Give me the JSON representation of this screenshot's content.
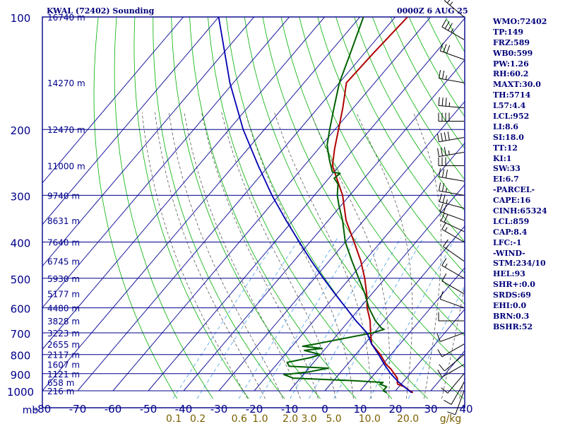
{
  "header": {
    "station": "KWAL (72402) Sounding",
    "time": "0000Z  6 AUG 25"
  },
  "colors": {
    "frame": "#00008b",
    "isotherm": "#1a1aa0",
    "dry_adiabat": "#00b000",
    "moist_adiabat": "#444444",
    "mixing_ratio": "#4aa0e8",
    "temperature": "#b00000",
    "dewpoint": "#006000",
    "parcel": "#0000b0",
    "wind_barb": "#000000",
    "index_text": "#00007a"
  },
  "indices": [
    "WMO:72402",
    "TP:149",
    "FRZ:589",
    "WB0:599",
    "PW:1.26",
    "RH:60.2",
    "MAXT:30.0",
    "TH:5714",
    "L57:4.4",
    "LCL:952",
    "LI:8.6",
    "SI:18.0",
    "TT:12",
    "KI:1",
    "SW:33",
    "EI:6.7",
    "-PARCEL-",
    "CAPE:16",
    "CINH:65324",
    "LCL:859",
    "CAP:8.4",
    "LFC:-1",
    "-WIND-",
    "STM:234/10",
    "HEL:93",
    "SHR+:0.0",
    "SRDS:69",
    "EHI:0.0",
    "BRN:0.3",
    "BSHR:52"
  ],
  "chart_data": {
    "type": "line",
    "subtype": "skew-t log-p sounding",
    "xlabel": "",
    "ylabel": "mb",
    "pressure_range": [
      1000,
      100
    ],
    "temperature_range": [
      -80,
      40
    ],
    "pressure_ticks": [
      100,
      200,
      300,
      400,
      500,
      600,
      700,
      800,
      900,
      1000
    ],
    "temperature_ticks": [
      -80,
      -70,
      -60,
      -50,
      -40,
      -30,
      -20,
      -10,
      0,
      10,
      20,
      30,
      40
    ],
    "temperature_tick_labels": [
      "-80",
      "-70",
      "-60",
      "-50",
      "-40",
      "-30",
      "-20",
      "-10",
      "0",
      "10",
      "20",
      "30",
      "40"
    ],
    "pressure_unit": "mb",
    "mixing_ratio_labels": [
      {
        "g_kg": 0.1,
        "label": "0.1"
      },
      {
        "g_kg": 0.2,
        "label": "0.2"
      },
      {
        "g_kg": 0.6,
        "label": "0.6"
      },
      {
        "g_kg": 1.0,
        "label": "1.0"
      },
      {
        "g_kg": 2.0,
        "label": "2.0"
      },
      {
        "g_kg": 3.0,
        "label": "3.0"
      },
      {
        "g_kg": 5.0,
        "label": "5.0"
      },
      {
        "g_kg": 10.0,
        "label": "10.0"
      },
      {
        "g_kg": 20.0,
        "label": "20.0"
      }
    ],
    "mixing_ratio_unit": "g/kg",
    "height_labels": [
      {
        "p": 1000,
        "label": "216 m"
      },
      {
        "p": 950,
        "label": "658 m"
      },
      {
        "p": 900,
        "label": "1121 m"
      },
      {
        "p": 850,
        "label": "1607 m"
      },
      {
        "p": 800,
        "label": "2117 m"
      },
      {
        "p": 750,
        "label": "2655 m"
      },
      {
        "p": 700,
        "label": "3223 m"
      },
      {
        "p": 650,
        "label": "3828 m"
      },
      {
        "p": 600,
        "label": "4480 m"
      },
      {
        "p": 550,
        "label": "5177 m"
      },
      {
        "p": 500,
        "label": "5930 m"
      },
      {
        "p": 450,
        "label": "6745 m"
      },
      {
        "p": 400,
        "label": "7640 m"
      },
      {
        "p": 350,
        "label": "8631 m"
      },
      {
        "p": 300,
        "label": "9740 m"
      },
      {
        "p": 250,
        "label": "11000 m"
      },
      {
        "p": 200,
        "label": "12470 m"
      },
      {
        "p": 150,
        "label": "14270 m"
      },
      {
        "p": 100,
        "label": "16740 m"
      }
    ],
    "series": [
      {
        "name": "Temperature",
        "points": [
          [
            1012,
            25.4
          ],
          [
            1000,
            24.0
          ],
          [
            975,
            21.5
          ],
          [
            960,
            19.0
          ],
          [
            950,
            18.5
          ],
          [
            925,
            17.5
          ],
          [
            900,
            15.5
          ],
          [
            875,
            13.5
          ],
          [
            850,
            11.0
          ],
          [
            800,
            7.0
          ],
          [
            750,
            2.0
          ],
          [
            700,
            -1.0
          ],
          [
            650,
            -4.0
          ],
          [
            600,
            -8.0
          ],
          [
            550,
            -11.5
          ],
          [
            500,
            -15.8
          ],
          [
            450,
            -21.0
          ],
          [
            400,
            -27.5
          ],
          [
            350,
            -35.0
          ],
          [
            300,
            -42.0
          ],
          [
            250,
            -52.0
          ],
          [
            225,
            -55.5
          ],
          [
            200,
            -59.0
          ],
          [
            175,
            -63.0
          ],
          [
            150,
            -68.0
          ],
          [
            125,
            -67.5
          ],
          [
            100,
            -66.5
          ]
        ]
      },
      {
        "name": "Dewpoint",
        "points": [
          [
            1012,
            18.0
          ],
          [
            1000,
            16.5
          ],
          [
            975,
            16.5
          ],
          [
            960,
            14.0
          ],
          [
            950,
            14.5
          ],
          [
            940,
            6.0
          ],
          [
            925,
            -12.0
          ],
          [
            905,
            -15.5
          ],
          [
            890,
            -9.0
          ],
          [
            870,
            -4.5
          ],
          [
            860,
            -16.0
          ],
          [
            840,
            -17.5
          ],
          [
            815,
            -12.0
          ],
          [
            800,
            -10.0
          ],
          [
            780,
            -15.5
          ],
          [
            770,
            -11.0
          ],
          [
            760,
            -17.0
          ],
          [
            750,
            -14.0
          ],
          [
            700,
            -0.5
          ],
          [
            685,
            2.0
          ],
          [
            680,
            1.0
          ],
          [
            650,
            -2.5
          ],
          [
            600,
            -7.5
          ],
          [
            550,
            -12.0
          ],
          [
            500,
            -17.5
          ],
          [
            450,
            -23.5
          ],
          [
            400,
            -30.0
          ],
          [
            370,
            -33.5
          ],
          [
            350,
            -36.0
          ],
          [
            320,
            -40.5
          ],
          [
            300,
            -43.5
          ],
          [
            280,
            -46.0
          ],
          [
            270,
            -48.5
          ],
          [
            262,
            -48.0
          ],
          [
            260,
            -50.5
          ],
          [
            240,
            -54.5
          ],
          [
            220,
            -58.5
          ],
          [
            200,
            -61.5
          ],
          [
            175,
            -65.5
          ],
          [
            150,
            -70.0
          ],
          [
            125,
            -74.0
          ],
          [
            100,
            -79.0
          ]
        ]
      },
      {
        "name": "Parcel",
        "points": [
          [
            1012,
            25.0
          ],
          [
            950,
            19.0
          ],
          [
            900,
            14.5
          ],
          [
            850,
            10.5
          ],
          [
            800,
            6.5
          ],
          [
            750,
            2.0
          ],
          [
            700,
            -2.0
          ],
          [
            650,
            -8.0
          ],
          [
            600,
            -14.0
          ],
          [
            550,
            -20.5
          ],
          [
            500,
            -27.5
          ],
          [
            450,
            -35.0
          ],
          [
            400,
            -43.0
          ],
          [
            350,
            -52.0
          ],
          [
            300,
            -62.0
          ],
          [
            250,
            -73.0
          ],
          [
            200,
            -86.0
          ],
          [
            150,
            -101.0
          ],
          [
            100,
            -120.0
          ]
        ]
      }
    ],
    "wind_barbs": [
      {
        "p": 100,
        "dir": 310,
        "spd": 25
      },
      {
        "p": 115,
        "dir": 300,
        "spd": 35
      },
      {
        "p": 130,
        "dir": 290,
        "spd": 30
      },
      {
        "p": 150,
        "dir": 280,
        "spd": 25
      },
      {
        "p": 175,
        "dir": 275,
        "spd": 35
      },
      {
        "p": 190,
        "dir": 270,
        "spd": 40
      },
      {
        "p": 210,
        "dir": 260,
        "spd": 40
      },
      {
        "p": 230,
        "dir": 260,
        "spd": 35
      },
      {
        "p": 250,
        "dir": 270,
        "spd": 30
      },
      {
        "p": 275,
        "dir": 280,
        "spd": 30
      },
      {
        "p": 300,
        "dir": 280,
        "spd": 25
      },
      {
        "p": 325,
        "dir": 285,
        "spd": 25
      },
      {
        "p": 350,
        "dir": 290,
        "spd": 20
      },
      {
        "p": 375,
        "dir": 295,
        "spd": 20
      },
      {
        "p": 400,
        "dir": 300,
        "spd": 15
      },
      {
        "p": 450,
        "dir": 305,
        "spd": 15
      },
      {
        "p": 500,
        "dir": 300,
        "spd": 15
      },
      {
        "p": 550,
        "dir": 300,
        "spd": 10
      },
      {
        "p": 600,
        "dir": 290,
        "spd": 10
      },
      {
        "p": 650,
        "dir": 270,
        "spd": 10
      },
      {
        "p": 700,
        "dir": 250,
        "spd": 10
      },
      {
        "p": 750,
        "dir": 240,
        "spd": 10
      },
      {
        "p": 800,
        "dir": 230,
        "spd": 10
      },
      {
        "p": 850,
        "dir": 240,
        "spd": 10
      },
      {
        "p": 900,
        "dir": 220,
        "spd": 10
      },
      {
        "p": 950,
        "dir": 210,
        "spd": 10
      },
      {
        "p": 1000,
        "dir": 200,
        "spd": 10
      }
    ],
    "grid": true
  }
}
